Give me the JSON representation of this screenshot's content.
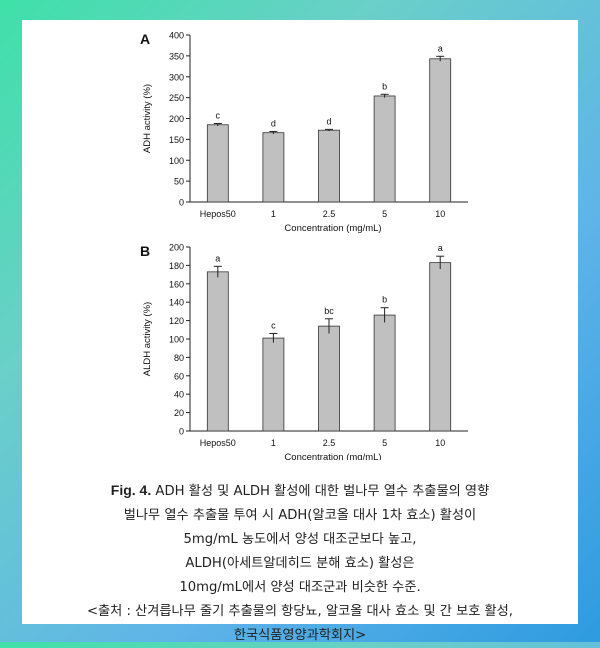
{
  "chart_data": [
    {
      "type": "bar",
      "panel_label": "A",
      "categories": [
        "Hepos50",
        "1",
        "2.5",
        "5",
        "10"
      ],
      "values": [
        185,
        166,
        172,
        254,
        343
      ],
      "errors": [
        3,
        3,
        2,
        4,
        6
      ],
      "significance": [
        "c",
        "d",
        "d",
        "b",
        "a"
      ],
      "xlabel": "Concentration (mg/mL)",
      "ylabel": "ADH activity (%)",
      "ylim": [
        0,
        400
      ],
      "yticks": [
        "0",
        "50",
        "100",
        "150",
        "200",
        "250",
        "300",
        "350",
        "400"
      ],
      "bar_color": "#c0c0c0"
    },
    {
      "type": "bar",
      "panel_label": "B",
      "categories": [
        "Hepos50",
        "1",
        "2.5",
        "5",
        "10"
      ],
      "values": [
        173,
        101,
        114,
        126,
        183
      ],
      "errors": [
        6,
        5,
        8,
        8,
        7
      ],
      "significance": [
        "a",
        "c",
        "bc",
        "b",
        "a"
      ],
      "xlabel": "Concentration (mg/mL)",
      "ylabel": "ALDH activity (%)",
      "ylim": [
        0,
        200
      ],
      "yticks": [
        "0",
        "20",
        "40",
        "60",
        "80",
        "100",
        "120",
        "140",
        "160",
        "180",
        "200"
      ],
      "bar_color": "#c0c0c0"
    }
  ],
  "caption": {
    "fig_label": "Fig. 4.",
    "title": " ADH 활성 및 ALDH 활성에 대한 벌나무 열수 추출물의 영향",
    "lines": [
      "벌나무 열수 추출물 투여 시 ADH(알코올 대사 1차 효소) 활성이",
      "5mg/mL 농도에서 양성 대조군보다 높고,",
      "ALDH(아세트알데히드 분해 효소) 활성은",
      "10mg/mL에서 양성 대조군과 비슷한 수준.",
      "<출처 : 산겨릅나무 줄기 추출물의 항당뇨, 알코올 대사 효소 및 간 보호 활성,",
      "한국식품영양과학회지>"
    ]
  },
  "colors": {
    "background_gradient": [
      "#3fe0a8",
      "#2e9be0"
    ],
    "bar_fill": "#c0c0c0",
    "card": "#ffffff"
  }
}
